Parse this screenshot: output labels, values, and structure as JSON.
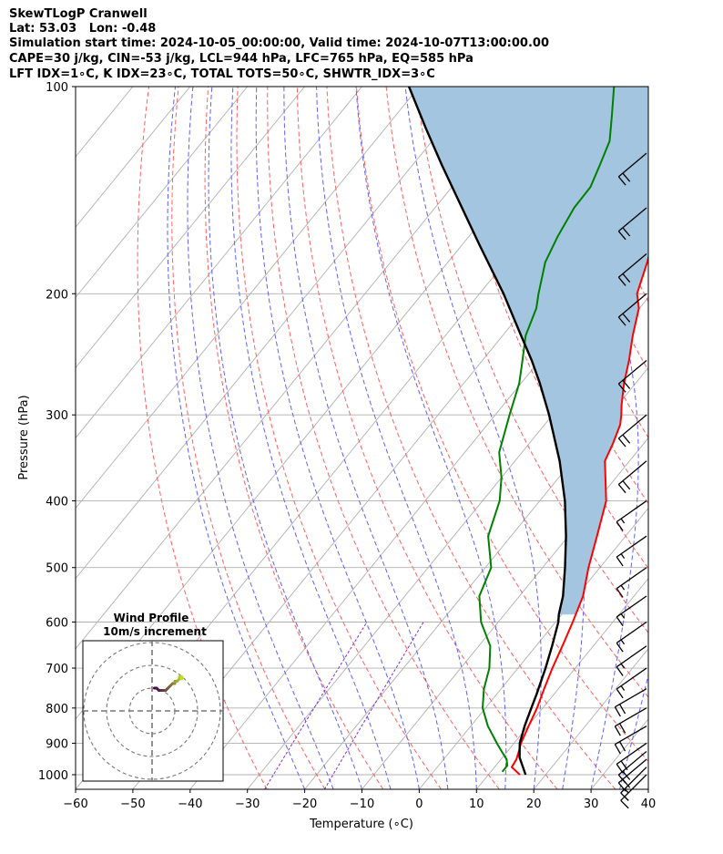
{
  "header": {
    "line1": "SkewTLogP Cranwell",
    "line2": "Lat: 53.03   Lon: -0.48",
    "line3": "Simulation start time: 2024-10-05_00:00:00, Valid time: 2024-10-07T13:00:00.00",
    "line4": "CAPE=30 j/kg, CIN=-53 j/kg, LCL=944 hPa, LFC=765 hPa, EQ=585 hPa",
    "line5": "LFT IDX=1∘C, K IDX=23∘C, TOTAL TOTS=50∘C, SHWTR_IDX=3∘C"
  },
  "colors": {
    "temperature": "#ff0000",
    "dewpoint": "#008000",
    "parcel": "#000000",
    "cape_fill": "#a3c5df",
    "dry_adiabat": "#ff6060",
    "moist_adiabat": "#6060ff",
    "mixing_ratio": "#8a2be2",
    "isotherm": "#b0b0b0"
  },
  "chart_data": {
    "type": "line",
    "title": "SkewTLogP Cranwell",
    "xlabel": "Temperature (∘C)",
    "ylabel": "Pressure (hPa)",
    "xlim": [
      -60,
      40
    ],
    "ylim": [
      1050,
      100
    ],
    "yscale": "log",
    "grid": true,
    "xticks": [
      -60,
      -50,
      -40,
      -30,
      -20,
      -10,
      0,
      10,
      20,
      30,
      40
    ],
    "yticks": [
      1000,
      900,
      800,
      700,
      600,
      500,
      400,
      300,
      200,
      100
    ],
    "series": [
      {
        "key": "temperature",
        "points": [
          [
            1000,
            15.5
          ],
          [
            975,
            13.0
          ],
          [
            950,
            12.7
          ],
          [
            925,
            12.0
          ],
          [
            900,
            11.2
          ],
          [
            850,
            10.1
          ],
          [
            800,
            9.0
          ],
          [
            750,
            7.5
          ],
          [
            700,
            6.0
          ],
          [
            650,
            4.6
          ],
          [
            600,
            3.0
          ],
          [
            550,
            1.1
          ],
          [
            500,
            -2.0
          ],
          [
            450,
            -5.0
          ],
          [
            400,
            -8.4
          ],
          [
            350,
            -14.3
          ],
          [
            330,
            -15.4
          ],
          [
            310,
            -16.8
          ],
          [
            300,
            -18.0
          ],
          [
            290,
            -19.4
          ],
          [
            270,
            -22.0
          ],
          [
            250,
            -24.4
          ],
          [
            230,
            -27.3
          ],
          [
            210,
            -30.1
          ],
          [
            200,
            -32.5
          ],
          [
            180,
            -35.2
          ],
          [
            160,
            -38.6
          ],
          [
            140,
            -43.4
          ],
          [
            125,
            -47.9
          ],
          [
            110,
            -51.0
          ],
          [
            100,
            -53.6
          ]
        ]
      },
      {
        "key": "dewpoint",
        "points": [
          [
            990,
            12.0
          ],
          [
            970,
            12.0
          ],
          [
            950,
            11.0
          ],
          [
            925,
            9.0
          ],
          [
            900,
            7.0
          ],
          [
            850,
            3.0
          ],
          [
            800,
            -0.5
          ],
          [
            750,
            -3.0
          ],
          [
            700,
            -5.0
          ],
          [
            650,
            -8.0
          ],
          [
            600,
            -13.0
          ],
          [
            550,
            -17.0
          ],
          [
            500,
            -19.0
          ],
          [
            450,
            -24.0
          ],
          [
            400,
            -27.0
          ],
          [
            370,
            -30.0
          ],
          [
            340,
            -34.0
          ],
          [
            300,
            -37.5
          ],
          [
            270,
            -40.3
          ],
          [
            250,
            -43.0
          ],
          [
            230,
            -46.0
          ],
          [
            210,
            -48.0
          ],
          [
            200,
            -49.7
          ],
          [
            180,
            -53.0
          ],
          [
            165,
            -54.5
          ],
          [
            150,
            -55.7
          ],
          [
            140,
            -55.8
          ],
          [
            130,
            -57.3
          ],
          [
            120,
            -59.0
          ],
          [
            110,
            -62.3
          ],
          [
            100,
            -66.0
          ]
        ]
      },
      {
        "key": "parcel",
        "points": [
          [
            1000,
            16.5
          ],
          [
            944,
            13.0
          ],
          [
            900,
            11.0
          ],
          [
            850,
            9.4
          ],
          [
            800,
            8.0
          ],
          [
            765,
            7.0
          ],
          [
            700,
            4.8
          ],
          [
            650,
            2.8
          ],
          [
            600,
            0.5
          ],
          [
            585,
            -0.5
          ],
          [
            550,
            -2.4
          ],
          [
            500,
            -6.1
          ],
          [
            450,
            -10.4
          ],
          [
            400,
            -15.6
          ],
          [
            350,
            -22.2
          ],
          [
            300,
            -30.6
          ],
          [
            270,
            -36.7
          ],
          [
            250,
            -41.4
          ],
          [
            230,
            -46.8
          ],
          [
            200,
            -55.8
          ],
          [
            170,
            -66.9
          ],
          [
            150,
            -75.3
          ],
          [
            130,
            -84.9
          ],
          [
            115,
            -92.9
          ],
          [
            100,
            -101.8
          ]
        ]
      }
    ],
    "cape_region": {
      "p_bottom": 585,
      "p_top": 100
    },
    "wind_barbs": {
      "pressures": [
        1000,
        975,
        950,
        925,
        900,
        850,
        800,
        750,
        700,
        650,
        600,
        550,
        500,
        450,
        400,
        350,
        300,
        250,
        200,
        175,
        150,
        125
      ],
      "speed_kt": [
        15,
        15,
        20,
        20,
        20,
        20,
        20,
        20,
        15,
        15,
        15,
        15,
        15,
        15,
        15,
        20,
        20,
        20,
        20,
        20,
        20,
        20
      ],
      "direction_deg": [
        225,
        225,
        230,
        230,
        235,
        240,
        240,
        240,
        235,
        235,
        235,
        235,
        235,
        235,
        235,
        230,
        230,
        230,
        230,
        230,
        230,
        230
      ]
    },
    "hodograph": {
      "title_line1": "Wind Profile",
      "title_line2": "10m/s increment",
      "rings_ms": [
        10,
        20,
        30
      ],
      "trace_uv": [
        [
          1,
          10
        ],
        [
          2,
          10
        ],
        [
          3,
          9
        ],
        [
          4,
          9
        ],
        [
          5,
          9
        ],
        [
          6,
          9
        ],
        [
          7,
          10
        ],
        [
          8,
          11
        ],
        [
          9,
          12
        ],
        [
          10,
          12
        ],
        [
          10,
          13
        ],
        [
          11,
          13
        ],
        [
          12,
          14
        ],
        [
          12,
          15
        ],
        [
          13,
          15
        ],
        [
          13,
          14
        ]
      ]
    }
  }
}
